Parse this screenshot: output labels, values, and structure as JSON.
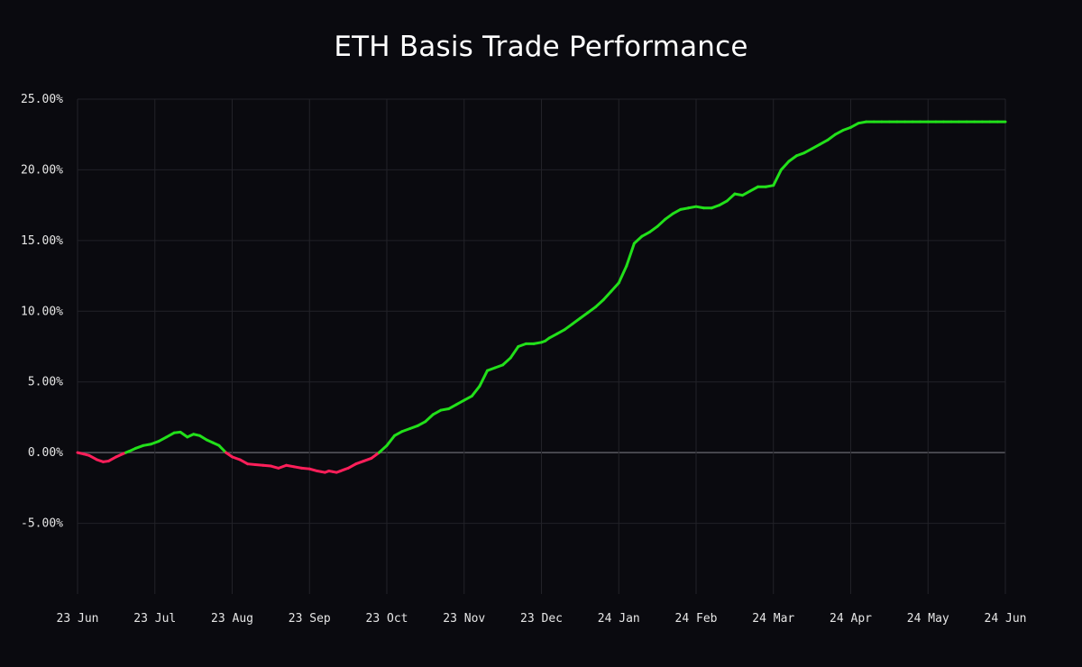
{
  "chart_data": {
    "type": "line",
    "title": "ETH Basis Trade Performance",
    "xlabel": "",
    "ylabel": "",
    "x_tick_labels": [
      "23 Jun",
      "23 Jul",
      "23 Aug",
      "23 Sep",
      "23 Oct",
      "23 Nov",
      "23 Dec",
      "24 Jan",
      "24 Feb",
      "24 Mar",
      "24 Apr",
      "24 May",
      "24 Jun"
    ],
    "y_tick_labels": [
      "25.00%",
      "20.00%",
      "15.00%",
      "10.00%",
      "5.00%",
      "0.00%",
      "-5.00%"
    ],
    "y_ticks": [
      25,
      20,
      15,
      10,
      5,
      0,
      -5
    ],
    "ylim": [
      -10,
      25
    ],
    "xlim": [
      0,
      12
    ],
    "grid": true,
    "colors": {
      "positive": "#22e01a",
      "negative": "#ff1f5a",
      "background": "#0a0a0f",
      "grid": "#222228",
      "zero_line": "#5a5a60",
      "text": "#e6e6e6"
    },
    "series": [
      {
        "x": [
          0,
          0.08,
          0.15,
          0.25,
          0.33,
          0.4,
          0.5,
          0.58,
          0.67,
          0.75,
          0.85,
          0.95,
          1.05,
          1.15,
          1.25,
          1.33,
          1.42,
          1.5,
          1.58,
          1.67,
          1.75,
          1.83,
          1.92,
          2.0,
          2.1,
          2.2,
          2.3,
          2.4,
          2.5,
          2.6,
          2.7,
          2.8,
          2.9,
          3.0,
          3.1,
          3.15,
          3.2,
          3.25,
          3.3,
          3.35,
          3.4,
          3.5,
          3.6,
          3.7,
          3.8,
          3.9,
          4.0,
          4.1,
          4.2,
          4.3,
          4.4,
          4.5,
          4.6,
          4.7,
          4.8,
          4.9,
          5.0,
          5.1,
          5.2,
          5.3,
          5.4,
          5.5,
          5.6,
          5.7,
          5.8,
          5.9,
          6.0,
          6.05,
          6.1,
          6.2,
          6.3,
          6.4,
          6.5,
          6.6,
          6.7,
          6.8,
          6.9,
          7.0,
          7.1,
          7.2,
          7.3,
          7.4,
          7.5,
          7.6,
          7.7,
          7.8,
          7.9,
          8.0,
          8.1,
          8.2,
          8.3,
          8.4,
          8.5,
          8.6,
          8.7,
          8.8,
          8.9,
          9.0,
          9.1,
          9.2,
          9.3,
          9.4,
          9.5,
          9.6,
          9.7,
          9.8,
          9.9,
          10.0,
          10.1,
          10.2,
          10.3,
          10.4,
          10.5,
          10.6,
          10.7,
          10.8,
          10.9,
          11.0,
          11.1,
          11.2,
          11.3,
          11.4,
          11.5,
          11.6,
          11.7,
          11.8,
          11.9,
          12.0
        ],
        "values": [
          0.0,
          -0.1,
          -0.2,
          -0.5,
          -0.65,
          -0.6,
          -0.3,
          -0.1,
          0.1,
          0.3,
          0.5,
          0.6,
          0.8,
          1.1,
          1.4,
          1.45,
          1.1,
          1.3,
          1.2,
          0.9,
          0.7,
          0.5,
          0.0,
          -0.3,
          -0.5,
          -0.8,
          -0.85,
          -0.9,
          -0.95,
          -1.1,
          -0.9,
          -1.0,
          -1.1,
          -1.15,
          -1.3,
          -1.35,
          -1.4,
          -1.3,
          -1.35,
          -1.4,
          -1.3,
          -1.1,
          -0.8,
          -0.6,
          -0.4,
          0.0,
          0.5,
          1.2,
          1.5,
          1.7,
          1.9,
          2.2,
          2.7,
          3.0,
          3.1,
          3.4,
          3.7,
          4.0,
          4.7,
          5.8,
          6.0,
          6.2,
          6.7,
          7.5,
          7.7,
          7.7,
          7.8,
          7.9,
          8.1,
          8.4,
          8.7,
          9.1,
          9.5,
          9.9,
          10.3,
          10.8,
          11.4,
          12.0,
          13.2,
          14.8,
          15.3,
          15.6,
          16.0,
          16.5,
          16.9,
          17.2,
          17.3,
          17.4,
          17.3,
          17.3,
          17.5,
          17.8,
          18.3,
          18.2,
          18.5,
          18.8,
          18.8,
          18.9,
          20.0,
          20.6,
          21.0,
          21.2,
          21.5,
          21.8,
          22.1,
          22.5,
          22.8,
          23.0,
          23.3,
          23.4,
          23.4,
          23.4,
          23.4,
          23.4,
          23.4,
          23.4,
          23.4,
          23.4,
          23.4,
          23.4,
          23.4,
          23.4,
          23.4,
          23.4,
          23.4,
          23.4,
          23.4,
          23.4
        ]
      }
    ]
  }
}
